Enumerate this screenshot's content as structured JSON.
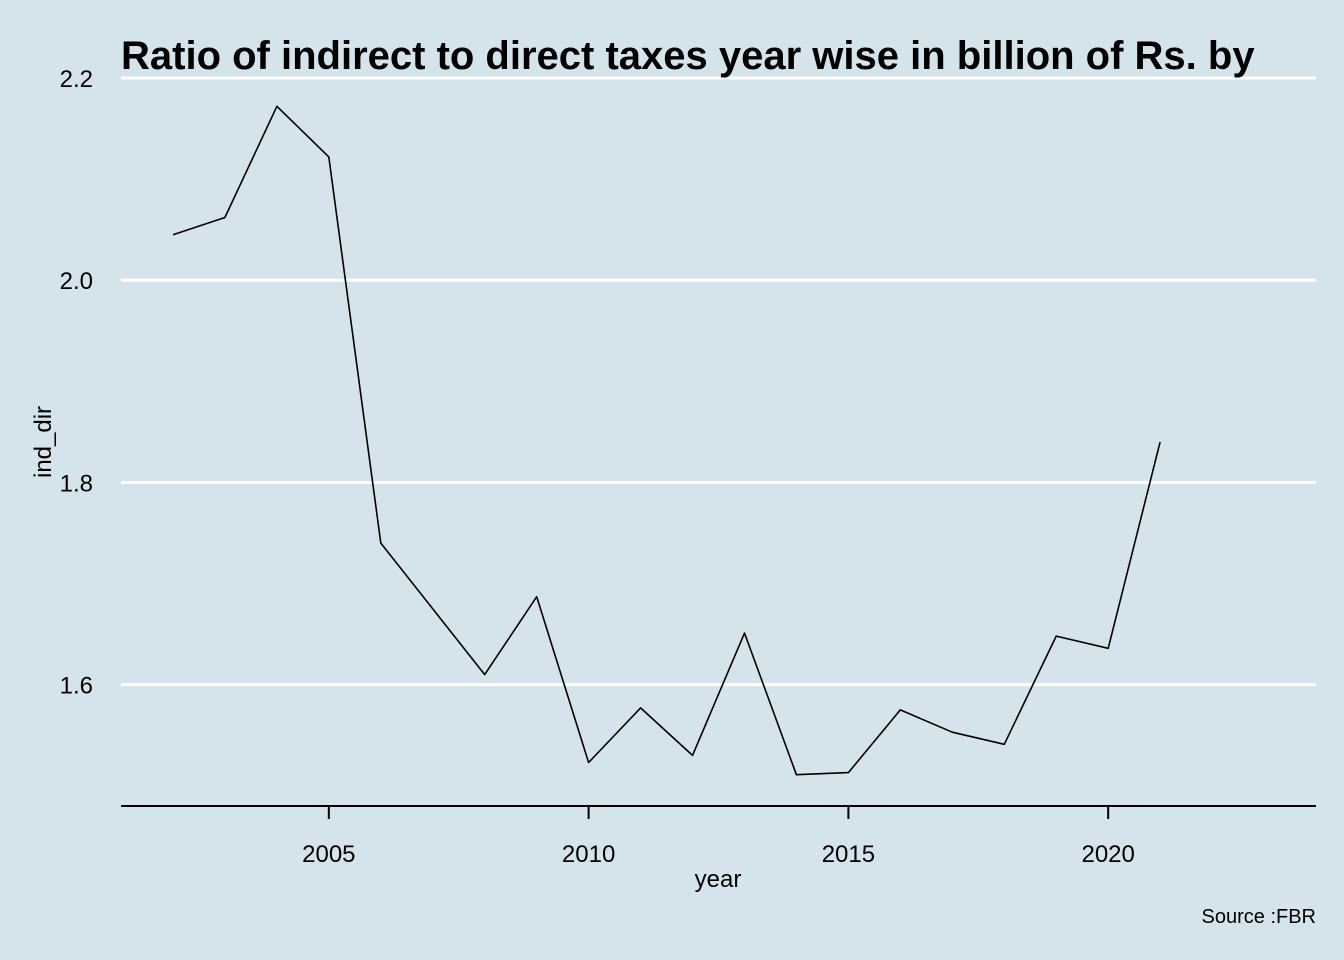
{
  "chart_data": {
    "type": "line",
    "title": "Ratio of indirect to direct taxes year wise in billion of Rs. by",
    "xlabel": "year",
    "ylabel": "ind_dir",
    "caption": "Source :FBR",
    "xlim": [
      2001,
      2024
    ],
    "ylim": [
      1.48,
      2.2
    ],
    "x_ticks": [
      2005,
      2010,
      2015,
      2020
    ],
    "y_ticks": [
      1.6,
      1.8,
      2.0,
      2.2
    ],
    "x_tick_labels": [
      "2005",
      "2010",
      "2015",
      "2020"
    ],
    "y_tick_labels": [
      "1.6",
      "1.8",
      "2.0",
      "2.2"
    ],
    "grid": "horizontal-major",
    "legend": "none",
    "colors": {
      "background": "#d5e4eb",
      "grid": "#ffffff",
      "line": "#000000",
      "axis": "#000000"
    },
    "x": [
      2002,
      2003,
      2004,
      2005,
      2006,
      2007,
      2008,
      2009,
      2010,
      2011,
      2012,
      2013,
      2014,
      2015,
      2016,
      2017,
      2018,
      2019,
      2020,
      2021
    ],
    "series": [
      {
        "values": [
          2.045,
          2.062,
          2.172,
          2.122,
          1.74,
          1.675,
          1.61,
          1.687,
          1.523,
          1.577,
          1.53,
          1.651,
          1.511,
          1.513,
          1.575,
          1.553,
          1.541,
          1.648,
          1.636,
          1.84
        ]
      }
    ]
  }
}
